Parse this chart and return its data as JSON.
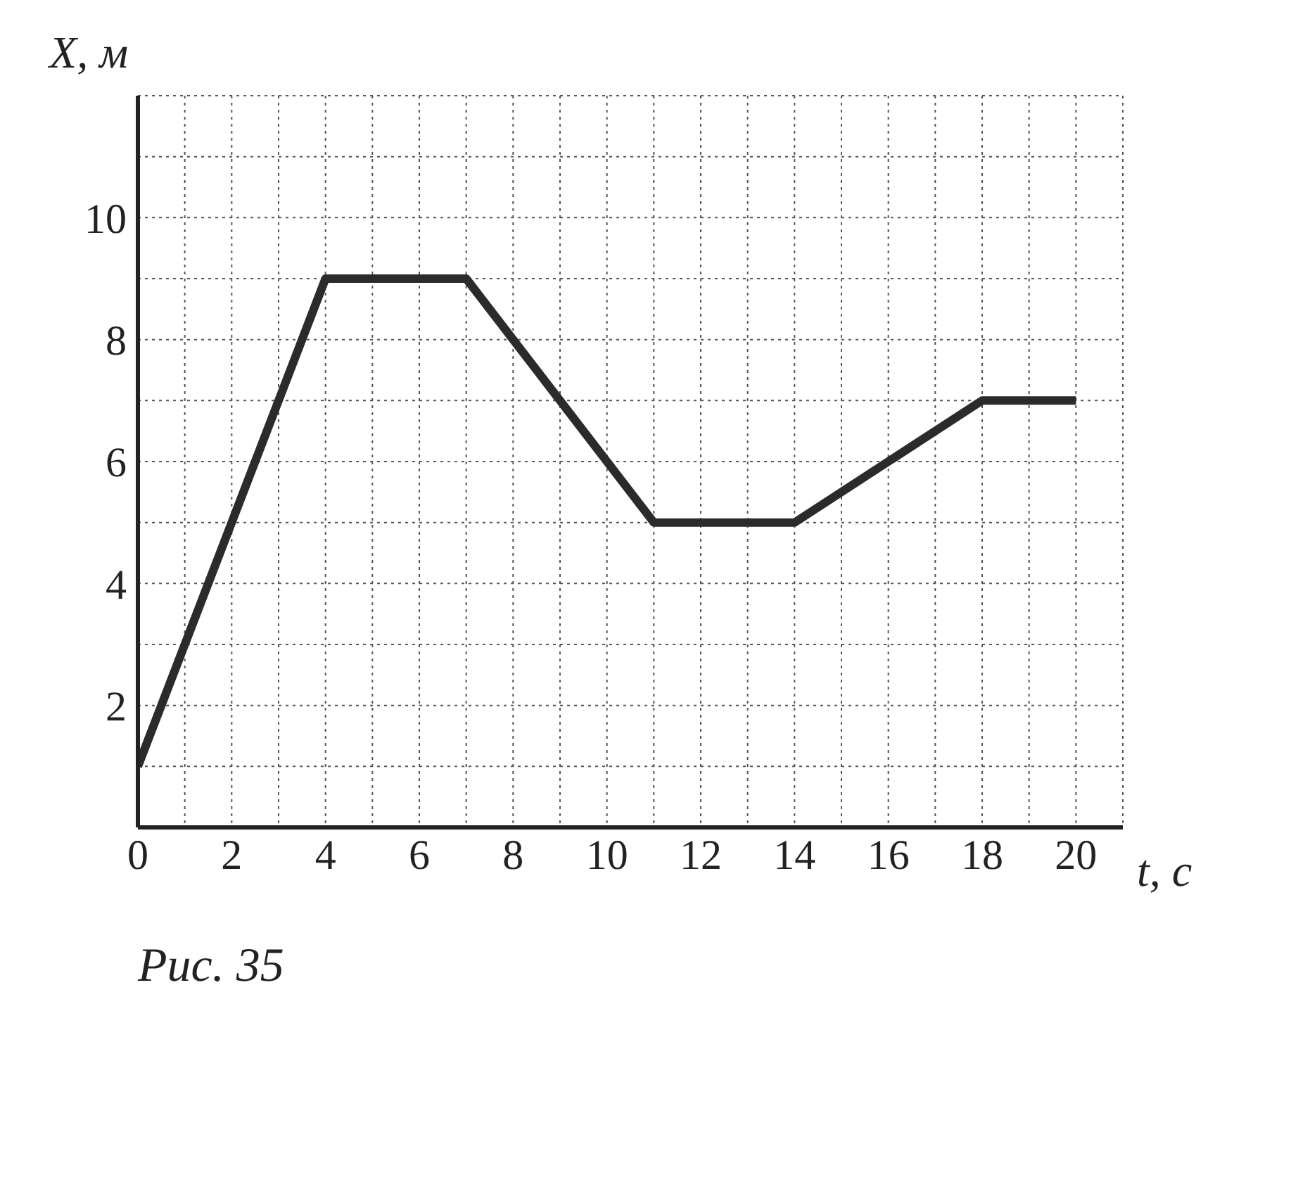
{
  "chart_data": {
    "type": "line",
    "xlabel": "t, с",
    "ylabel": "X, м",
    "x": [
      0,
      4,
      7,
      11,
      14,
      18,
      20
    ],
    "series": [
      {
        "color": "#2b2b2b",
        "values": [
          1,
          9,
          9,
          5,
          5,
          7,
          7
        ]
      }
    ],
    "xlim": [
      0,
      21
    ],
    "ylim": [
      0,
      12
    ],
    "xticks": [
      0,
      {
        "value": 1,
        "label": null
      },
      2,
      {
        "value": 3,
        "label": null
      },
      4,
      {
        "value": 5,
        "label": null
      },
      6,
      {
        "value": 7,
        "label": null
      },
      8,
      {
        "value": 9,
        "label": null
      },
      10,
      {
        "value": 11,
        "label": null
      },
      12,
      {
        "value": 13,
        "label": null
      },
      14,
      {
        "value": 15,
        "label": null
      },
      16,
      {
        "value": 17,
        "label": null
      },
      18,
      {
        "value": 19,
        "label": null
      },
      20
    ],
    "yticks": [
      {
        "value": 1,
        "label": null
      },
      2,
      {
        "value": 3,
        "label": null
      },
      4,
      {
        "value": 5,
        "label": null
      },
      6,
      {
        "value": 7,
        "label": null
      },
      8,
      {
        "value": 9,
        "label": null
      },
      10,
      {
        "value": 11,
        "label": null
      }
    ],
    "grid": true,
    "marker": "none",
    "line_style": "solid",
    "legend": false,
    "annotations": [
      "Рис. 35"
    ]
  }
}
